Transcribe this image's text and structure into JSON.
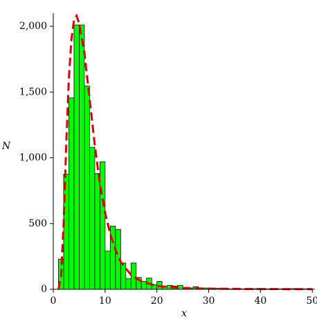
{
  "chart_data": {
    "type": "histogram",
    "x_label": "x",
    "y_label": "N",
    "bins": [
      0,
      1,
      2,
      3,
      4,
      5,
      6,
      7,
      8,
      9,
      10,
      11,
      12,
      13,
      14,
      15,
      16,
      17,
      18,
      19,
      20,
      21,
      22,
      23,
      24,
      25,
      26,
      27,
      28,
      29,
      30,
      31,
      32,
      33,
      34,
      35,
      36,
      37,
      38,
      39,
      40,
      41,
      42,
      43,
      44,
      45,
      46,
      47,
      48,
      49,
      50
    ],
    "values": [
      0,
      230,
      875,
      1455,
      2010,
      2010,
      1545,
      1080,
      880,
      970,
      290,
      480,
      455,
      200,
      80,
      200,
      90,
      60,
      85,
      35,
      60,
      20,
      30,
      25,
      30,
      15,
      10,
      20,
      5,
      10,
      5,
      8,
      5,
      5,
      3,
      5,
      3,
      5,
      3,
      5,
      3,
      3,
      5,
      3,
      3,
      3,
      5,
      3,
      3,
      5
    ],
    "color": "#00ff00",
    "edgecolor": "#000000",
    "fit": {
      "color": "#e00000",
      "dashed": true,
      "x": [
        1,
        1.5,
        2,
        2.5,
        3,
        3.5,
        4,
        4.5,
        5,
        6,
        7,
        8,
        9,
        10,
        11,
        12,
        13,
        15,
        17,
        20,
        25,
        30,
        40,
        50
      ],
      "values": [
        0,
        100,
        500,
        1100,
        1600,
        1900,
        2050,
        2080,
        2020,
        1800,
        1450,
        1100,
        800,
        580,
        420,
        300,
        210,
        110,
        60,
        25,
        10,
        5,
        2,
        1
      ]
    },
    "xlim": [
      0,
      50.5
    ],
    "ylim": [
      0,
      2100
    ],
    "xticks": [
      0,
      10,
      20,
      30,
      40,
      50
    ],
    "yticks": [
      0,
      {
        "value": 500,
        "label": "500"
      },
      {
        "value": 1000,
        "label": "1,000"
      },
      {
        "value": 1500,
        "label": "1,500"
      },
      {
        "value": 2000,
        "label": "2,000"
      }
    ]
  }
}
